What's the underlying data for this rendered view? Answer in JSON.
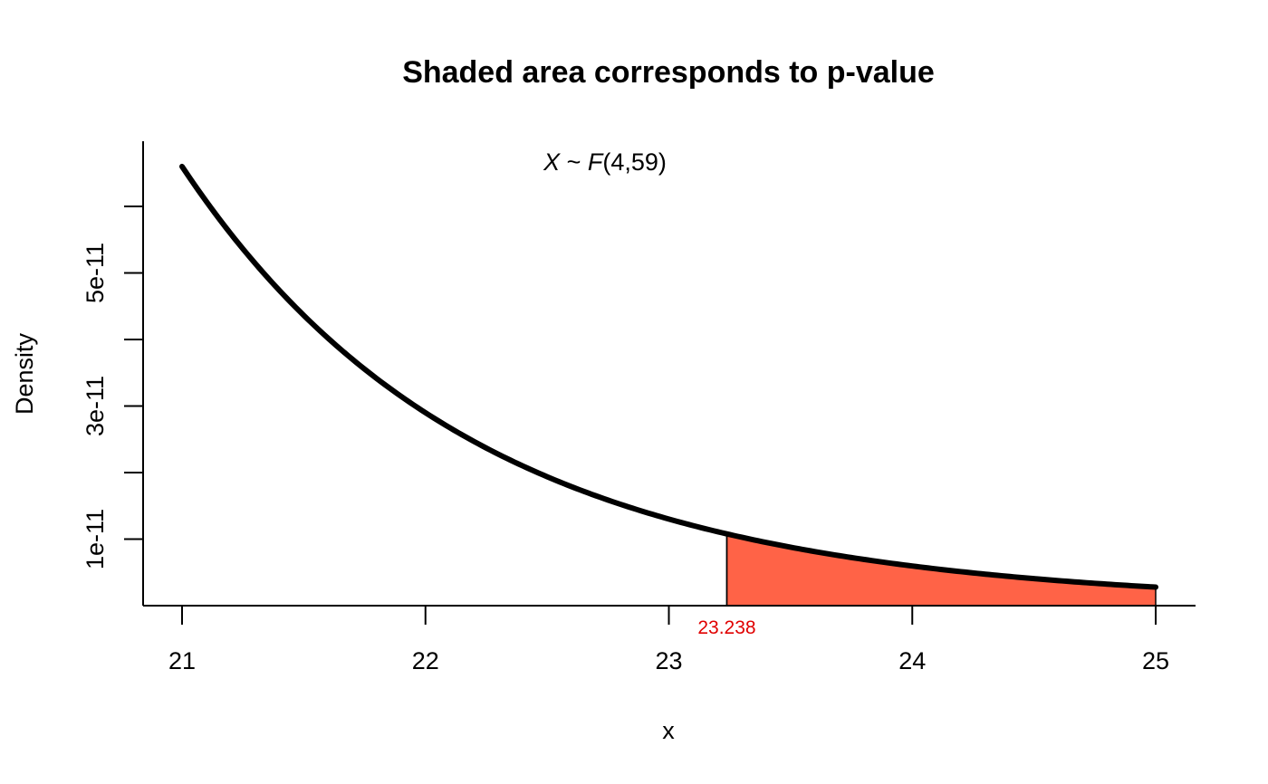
{
  "chart_data": {
    "type": "area",
    "title": "Shaded area corresponds to p-value",
    "xlabel": "x",
    "ylabel": "Density",
    "annotation": {
      "prefix": "X",
      "tilde": " ~ ",
      "dist": "F",
      "params": "(4,59)"
    },
    "distribution": {
      "family": "F",
      "df1": 4,
      "df2": 59
    },
    "xlim": [
      21,
      25
    ],
    "ylim": [
      0,
      6.8e-11
    ],
    "x_ticks": [
      21,
      22,
      23,
      24,
      25
    ],
    "x_tick_labels": [
      "21",
      "22",
      "23",
      "24",
      "25"
    ],
    "y_ticks": [
      1e-11,
      2e-11,
      3e-11,
      4e-11,
      5e-11,
      6e-11
    ],
    "y_tick_labels": [
      "1e-11",
      "",
      "3e-11",
      "",
      "5e-11",
      ""
    ],
    "series": [
      {
        "x": [
          21.0,
          21.25,
          21.5,
          21.75,
          22.0,
          22.25,
          22.5,
          22.75,
          23.0,
          23.238,
          23.5,
          23.75,
          24.0,
          24.25,
          24.5,
          24.75,
          25.0
        ],
        "y": [
          6.6e-11,
          5.33e-11,
          4.32e-11,
          3.5e-11,
          2.84e-11,
          2.32e-11,
          1.89e-11,
          1.55e-11,
          1.27e-11,
          1.06e-11,
          8.6e-12,
          7.1e-12,
          5.9e-12,
          4.9e-12,
          4.1e-12,
          3.4e-12,
          2.8e-12
        ]
      }
    ],
    "critical_value": 23.238,
    "critical_label": "23.238",
    "shade_color": "#ff6347",
    "critical_label_color": "#e00000",
    "grid": false
  }
}
